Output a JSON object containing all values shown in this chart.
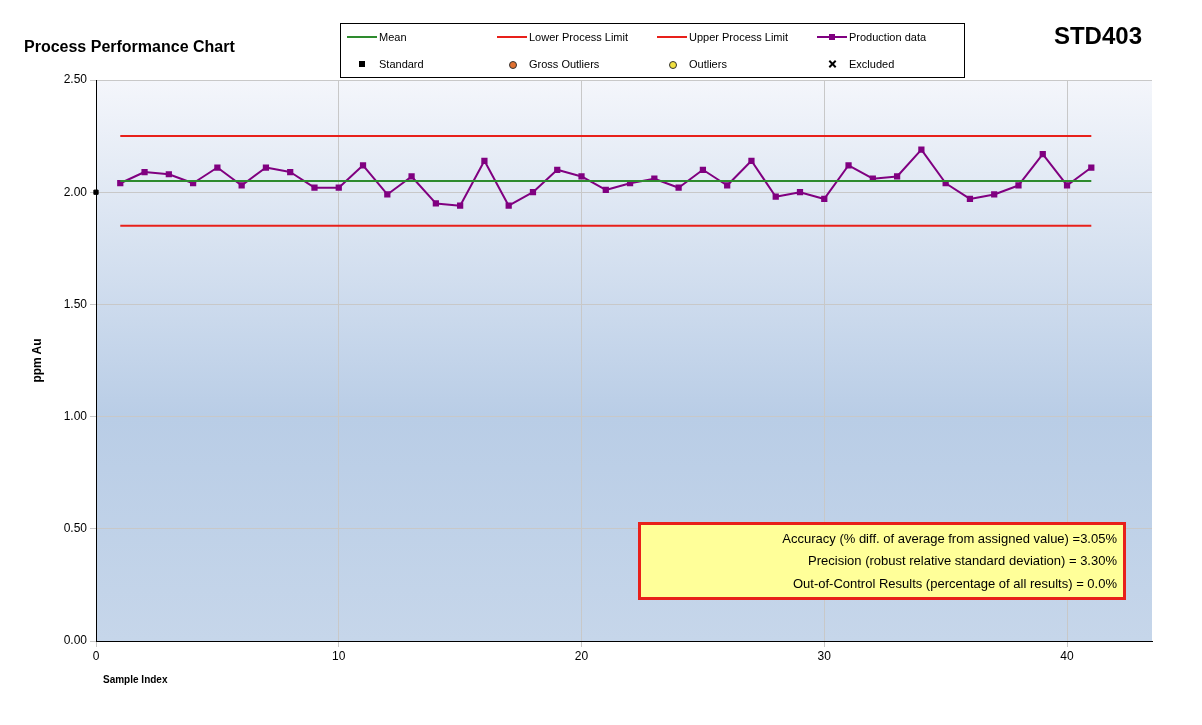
{
  "chart_data": {
    "type": "line",
    "title": "Process Performance Chart",
    "xlabel": "Sample Index",
    "ylabel": "ppm Au",
    "annotations": [
      "STD403",
      "Accuracy (% diff. of average from assigned value) =3.05%",
      "Precision (robust relative standard deviation) = 3.30%",
      "Out-of-Control Results (percentage of all results) = 0.0%"
    ],
    "xlim": [
      0,
      43.5
    ],
    "xticks": [
      0,
      10,
      20,
      30,
      40
    ],
    "ylim": [
      0,
      2.5
    ],
    "yticks": [
      {
        "value": 0,
        "label": "0.00"
      },
      {
        "value": 0.5,
        "label": "0.50"
      },
      {
        "value": 1,
        "label": "1.00"
      },
      {
        "value": 1.5,
        "label": "1.50"
      },
      {
        "value": 2,
        "label": "2.00"
      },
      {
        "value": 2.5,
        "label": "2.50"
      }
    ],
    "grid": true,
    "legend": "top",
    "series": [
      {
        "name": "Mean",
        "type": "line",
        "color": "#2e8b2e",
        "marker": "none",
        "x": [
          1,
          41
        ],
        "values": [
          2.05,
          2.05
        ]
      },
      {
        "name": "Lower Process Limit",
        "type": "line",
        "color": "#e8201a",
        "marker": "none",
        "x": [
          1,
          41
        ],
        "values": [
          1.85,
          1.85
        ]
      },
      {
        "name": "Upper Process Limit",
        "type": "line",
        "color": "#e8201a",
        "marker": "none",
        "x": [
          1,
          41
        ],
        "values": [
          2.25,
          2.25
        ]
      },
      {
        "name": "Production data",
        "type": "line",
        "color": "#800080",
        "marker": "square",
        "x": [
          1,
          2,
          3,
          4,
          5,
          6,
          7,
          8,
          9,
          10,
          11,
          12,
          13,
          14,
          15,
          16,
          17,
          18,
          19,
          20,
          21,
          22,
          23,
          24,
          25,
          26,
          27,
          28,
          29,
          30,
          31,
          32,
          33,
          34,
          35,
          36,
          37,
          38,
          39,
          40,
          41
        ],
        "values": [
          2.04,
          2.09,
          2.08,
          2.04,
          2.11,
          2.03,
          2.11,
          2.09,
          2.02,
          2.02,
          2.12,
          1.99,
          2.07,
          1.95,
          1.94,
          2.14,
          1.94,
          2.0,
          2.1,
          2.07,
          2.01,
          2.04,
          2.06,
          2.02,
          2.1,
          2.03,
          2.14,
          1.98,
          2.0,
          1.97,
          2.12,
          2.06,
          2.07,
          2.19,
          2.04,
          1.97,
          1.99,
          2.03,
          2.17,
          2.03,
          2.11
        ]
      },
      {
        "name": "Standard",
        "type": "scatter",
        "color": "#000000",
        "marker": "square",
        "x": [
          0
        ],
        "values": [
          2.0
        ]
      },
      {
        "name": "Gross Outliers",
        "type": "scatter",
        "color": "#e07030",
        "marker": "circle"
      },
      {
        "name": "Outliers",
        "type": "scatter",
        "color": "#f0e040",
        "marker": "circle"
      },
      {
        "name": "Excluded",
        "type": "scatter",
        "color": "#000000",
        "marker": "cross"
      }
    ]
  }
}
